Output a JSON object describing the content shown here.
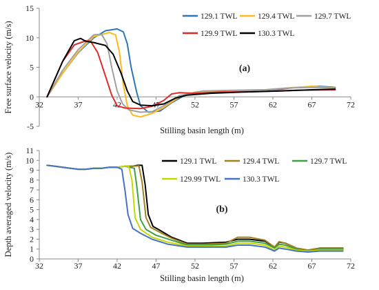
{
  "chart_data": [
    {
      "panel_label": "(a)",
      "type": "line",
      "xlabel": "Stilling basin length (m)",
      "ylabel": "Free surface velocity (m/s)",
      "xlim": [
        32,
        72
      ],
      "ylim": [
        -5,
        15
      ],
      "xticks": [
        32,
        37,
        42,
        47,
        52,
        57,
        62,
        67,
        72
      ],
      "yticks": [
        -5,
        0,
        5,
        10,
        15
      ],
      "grid": false,
      "legend_placement": "top-right",
      "series": [
        {
          "name": "129.1 TWL",
          "color": "#2e75b6",
          "points": [
            [
              33,
              0
            ],
            [
              35,
              4
            ],
            [
              37,
              7.5
            ],
            [
              39,
              10
            ],
            [
              40.5,
              11.2
            ],
            [
              42,
              11.5
            ],
            [
              42.8,
              11
            ],
            [
              43.3,
              9
            ],
            [
              43.8,
              5
            ],
            [
              44.5,
              0.8
            ],
            [
              45,
              -1.5
            ],
            [
              46,
              -2.6
            ],
            [
              47.5,
              -2.4
            ],
            [
              49,
              -1
            ],
            [
              51,
              0.5
            ],
            [
              53,
              0.9
            ],
            [
              56,
              0.9
            ],
            [
              60,
              1.1
            ],
            [
              63,
              1.3
            ],
            [
              65,
              1.6
            ],
            [
              68,
              1.8
            ],
            [
              70,
              1.6
            ]
          ]
        },
        {
          "name": "129.4 TWL",
          "color": "#ffb81c",
          "points": [
            [
              33,
              0
            ],
            [
              35,
              4
            ],
            [
              37,
              7.6
            ],
            [
              39,
              10.2
            ],
            [
              41,
              10.9
            ],
            [
              41.8,
              10.5
            ],
            [
              42.3,
              7.5
            ],
            [
              42.8,
              2
            ],
            [
              43.3,
              -1.5
            ],
            [
              44,
              -3.1
            ],
            [
              45,
              -3.4
            ],
            [
              46.5,
              -2.8
            ],
            [
              48,
              -1.8
            ],
            [
              50,
              0
            ],
            [
              52,
              0.8
            ],
            [
              56,
              0.9
            ],
            [
              60,
              1.1
            ],
            [
              64,
              1.5
            ],
            [
              67,
              1.8
            ],
            [
              70,
              1.5
            ]
          ]
        },
        {
          "name": "129.7 TWL",
          "color": "#a0a0a0",
          "points": [
            [
              33,
              0
            ],
            [
              35,
              4.5
            ],
            [
              37,
              8
            ],
            [
              39,
              10.5
            ],
            [
              40,
              10.6
            ],
            [
              40.7,
              9
            ],
            [
              41.3,
              5
            ],
            [
              42,
              1
            ],
            [
              42.7,
              -1.2
            ],
            [
              43.5,
              -2.2
            ],
            [
              45,
              -2.6
            ],
            [
              46.5,
              -2.5
            ],
            [
              48,
              -1.5
            ],
            [
              50,
              0.2
            ],
            [
              53,
              1
            ],
            [
              57,
              1.1
            ],
            [
              61,
              1.2
            ],
            [
              64,
              1.5
            ],
            [
              67,
              1.6
            ],
            [
              70,
              1.5
            ]
          ]
        },
        {
          "name": "129.9 TWL",
          "color": "#e02a2a",
          "points": [
            [
              33,
              0
            ],
            [
              35,
              6
            ],
            [
              36.5,
              8.8
            ],
            [
              38,
              9.5
            ],
            [
              38.6,
              9.4
            ],
            [
              39.5,
              7.5
            ],
            [
              40.5,
              3.5
            ],
            [
              41.3,
              0.3
            ],
            [
              42,
              -1.5
            ],
            [
              43,
              -1.9
            ],
            [
              45,
              -2
            ],
            [
              46.5,
              -1.6
            ],
            [
              48,
              -0.6
            ],
            [
              49,
              0.5
            ],
            [
              50,
              0.7
            ],
            [
              52,
              0.6
            ],
            [
              55,
              0.8
            ],
            [
              60,
              0.9
            ],
            [
              65,
              1.1
            ],
            [
              70,
              1.2
            ]
          ]
        },
        {
          "name": "130.3 TWL",
          "color": "#000000",
          "points": [
            [
              33,
              0
            ],
            [
              35,
              6
            ],
            [
              36.5,
              9.5
            ],
            [
              37.3,
              9.9
            ],
            [
              38,
              9.4
            ],
            [
              39,
              9.2
            ],
            [
              40.5,
              8.7
            ],
            [
              41.5,
              7.2
            ],
            [
              42.5,
              4
            ],
            [
              43.3,
              1
            ],
            [
              44,
              -0.8
            ],
            [
              45,
              -1.4
            ],
            [
              46.5,
              -1.5
            ],
            [
              48,
              -1.2
            ],
            [
              49.5,
              -0.2
            ],
            [
              51,
              0.3
            ],
            [
              54,
              0.6
            ],
            [
              58,
              0.8
            ],
            [
              63,
              1
            ],
            [
              67,
              1.2
            ],
            [
              70,
              1.3
            ]
          ]
        }
      ]
    },
    {
      "panel_label": "(b)",
      "type": "line",
      "xlabel": "Stilling basin length (m)",
      "ylabel": "Depth averaged velocity (m/s)",
      "xlim": [
        32,
        72
      ],
      "ylim": [
        0,
        11
      ],
      "xticks": [
        32,
        37,
        42,
        47,
        52,
        57,
        62,
        67,
        72
      ],
      "yticks": [
        0,
        1,
        2,
        3,
        4,
        5,
        6,
        7,
        8,
        9,
        10,
        11
      ],
      "grid": false,
      "legend_placement": "top-right",
      "series": [
        {
          "name": "129.1 TWL",
          "color": "#000000",
          "points": [
            [
              33,
              9.5
            ],
            [
              34,
              9.4
            ],
            [
              35,
              9.3
            ],
            [
              36,
              9.2
            ],
            [
              37,
              9.1
            ],
            [
              38,
              9.1
            ],
            [
              39,
              9.2
            ],
            [
              40,
              9.2
            ],
            [
              41,
              9.3
            ],
            [
              42,
              9.3
            ],
            [
              43,
              9.4
            ],
            [
              44,
              9.4
            ],
            [
              44.6,
              9.5
            ],
            [
              45.2,
              9.5
            ],
            [
              45.6,
              7.5
            ],
            [
              46,
              4.5
            ],
            [
              46.6,
              3.3
            ],
            [
              47.5,
              2.9
            ],
            [
              49,
              2.2
            ],
            [
              51,
              1.6
            ],
            [
              53,
              1.6
            ],
            [
              56,
              1.7
            ],
            [
              57.5,
              2
            ],
            [
              59,
              2
            ],
            [
              61,
              1.8
            ],
            [
              62.2,
              1.2
            ],
            [
              62.8,
              1.7
            ],
            [
              63.6,
              1.6
            ],
            [
              65,
              1.1
            ],
            [
              66.5,
              0.9
            ],
            [
              68,
              1.1
            ],
            [
              71,
              1.1
            ]
          ]
        },
        {
          "name": "129.4 TWL",
          "color": "#a08020",
          "points": [
            [
              33,
              9.5
            ],
            [
              34,
              9.4
            ],
            [
              35,
              9.3
            ],
            [
              36,
              9.2
            ],
            [
              37,
              9.1
            ],
            [
              38,
              9.1
            ],
            [
              39,
              9.2
            ],
            [
              40,
              9.2
            ],
            [
              41,
              9.3
            ],
            [
              42,
              9.3
            ],
            [
              43,
              9.4
            ],
            [
              44,
              9.4
            ],
            [
              44.8,
              9.45
            ],
            [
              45.2,
              7.8
            ],
            [
              45.7,
              4.2
            ],
            [
              46.3,
              3.2
            ],
            [
              47.5,
              2.7
            ],
            [
              49,
              2.1
            ],
            [
              51,
              1.5
            ],
            [
              53,
              1.5
            ],
            [
              56,
              1.6
            ],
            [
              57.5,
              2.2
            ],
            [
              59,
              2.2
            ],
            [
              61,
              1.9
            ],
            [
              62.2,
              1.2
            ],
            [
              62.8,
              1.75
            ],
            [
              63.6,
              1.6
            ],
            [
              65,
              1.1
            ],
            [
              66.5,
              0.9
            ],
            [
              68,
              1.1
            ],
            [
              71,
              1.1
            ]
          ]
        },
        {
          "name": "129.7 TWL",
          "color": "#3fa03f",
          "points": [
            [
              33,
              9.5
            ],
            [
              34,
              9.4
            ],
            [
              35,
              9.3
            ],
            [
              36,
              9.2
            ],
            [
              37,
              9.1
            ],
            [
              38,
              9.1
            ],
            [
              39,
              9.2
            ],
            [
              40,
              9.2
            ],
            [
              41,
              9.3
            ],
            [
              42,
              9.3
            ],
            [
              43,
              9.4
            ],
            [
              43.6,
              9.3
            ],
            [
              44.2,
              9.2
            ],
            [
              44.5,
              7.5
            ],
            [
              45,
              4
            ],
            [
              45.7,
              3
            ],
            [
              47,
              2.4
            ],
            [
              49,
              1.9
            ],
            [
              51,
              1.4
            ],
            [
              53,
              1.4
            ],
            [
              56,
              1.5
            ],
            [
              57.5,
              1.8
            ],
            [
              59,
              1.8
            ],
            [
              61,
              1.6
            ],
            [
              62.2,
              1.1
            ],
            [
              62.8,
              1.5
            ],
            [
              63.6,
              1.4
            ],
            [
              65,
              1
            ],
            [
              66.5,
              0.8
            ],
            [
              68,
              1
            ],
            [
              71,
              1
            ]
          ]
        },
        {
          "name": "129.99 TWL",
          "color": "#c6d600",
          "points": [
            [
              33,
              9.5
            ],
            [
              34,
              9.4
            ],
            [
              35,
              9.3
            ],
            [
              36,
              9.2
            ],
            [
              37,
              9.1
            ],
            [
              38,
              9.1
            ],
            [
              39,
              9.2
            ],
            [
              40,
              9.2
            ],
            [
              41,
              9.3
            ],
            [
              42,
              9.3
            ],
            [
              43,
              9.4
            ],
            [
              43.5,
              9.4
            ],
            [
              43.9,
              8
            ],
            [
              44.3,
              4.2
            ],
            [
              45,
              3
            ],
            [
              46.5,
              2.2
            ],
            [
              48.5,
              1.7
            ],
            [
              51,
              1.3
            ],
            [
              53,
              1.3
            ],
            [
              56,
              1.3
            ],
            [
              57.5,
              1.6
            ],
            [
              59,
              1.6
            ],
            [
              61,
              1.4
            ],
            [
              62.2,
              0.9
            ],
            [
              62.8,
              1.3
            ],
            [
              63.6,
              1.2
            ],
            [
              65,
              0.9
            ],
            [
              66.5,
              0.8
            ],
            [
              68,
              0.9
            ],
            [
              71,
              0.9
            ]
          ]
        },
        {
          "name": "130.3 TWL",
          "color": "#4472c4",
          "points": [
            [
              33,
              9.5
            ],
            [
              34,
              9.4
            ],
            [
              35,
              9.3
            ],
            [
              36,
              9.2
            ],
            [
              37,
              9.1
            ],
            [
              38,
              9.1
            ],
            [
              39,
              9.2
            ],
            [
              40,
              9.2
            ],
            [
              41,
              9.3
            ],
            [
              42,
              9.3
            ],
            [
              42.6,
              9.1
            ],
            [
              43,
              7
            ],
            [
              43.4,
              4.5
            ],
            [
              44,
              3.1
            ],
            [
              45,
              2.6
            ],
            [
              46.5,
              2
            ],
            [
              48.5,
              1.5
            ],
            [
              51,
              1.2
            ],
            [
              53,
              1.2
            ],
            [
              56,
              1.2
            ],
            [
              57.5,
              1.4
            ],
            [
              59,
              1.4
            ],
            [
              61,
              1.2
            ],
            [
              62.2,
              0.8
            ],
            [
              62.8,
              1.1
            ],
            [
              63.6,
              1
            ],
            [
              65,
              0.8
            ],
            [
              66.5,
              0.7
            ],
            [
              68,
              0.8
            ],
            [
              71,
              0.8
            ]
          ]
        }
      ]
    }
  ]
}
